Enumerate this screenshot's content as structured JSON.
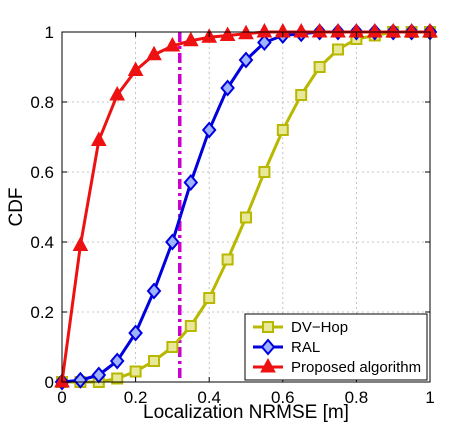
{
  "chart_data": {
    "type": "line",
    "title": "",
    "xlabel": "Localization NRMSE [m]",
    "ylabel": "CDF",
    "xlim": [
      0,
      1
    ],
    "ylim": [
      0,
      1
    ],
    "x_ticks": [
      "0",
      "0.2",
      "0.4",
      "0.6",
      "0.8",
      "1"
    ],
    "y_ticks": [
      "0",
      "0.2",
      "0.4",
      "0.6",
      "0.8",
      "1"
    ],
    "x_tick_values": [
      0,
      0.2,
      0.4,
      0.6,
      0.8,
      1
    ],
    "y_tick_values": [
      0,
      0.2,
      0.4,
      0.6,
      0.8,
      1
    ],
    "grid": true,
    "legend_position": "bottom-right",
    "threshold_line": {
      "x": 0.32,
      "color": "#cc00cc"
    },
    "series": [
      {
        "name": "DV−Hop",
        "color": "#b8b800",
        "marker": "square",
        "x": [
          0,
          0.05,
          0.1,
          0.15,
          0.2,
          0.25,
          0.3,
          0.35,
          0.4,
          0.45,
          0.5,
          0.55,
          0.6,
          0.65,
          0.7,
          0.75,
          0.8,
          0.85,
          0.9,
          0.95,
          1.0
        ],
        "values": [
          0,
          0,
          0,
          0.01,
          0.03,
          0.06,
          0.1,
          0.16,
          0.24,
          0.35,
          0.47,
          0.6,
          0.72,
          0.82,
          0.9,
          0.95,
          0.98,
          0.99,
          1.0,
          1.0,
          1.0
        ]
      },
      {
        "name": "RAL",
        "color": "#0000dd",
        "marker": "diamond",
        "x": [
          0,
          0.05,
          0.1,
          0.15,
          0.2,
          0.25,
          0.3,
          0.35,
          0.4,
          0.45,
          0.5,
          0.55,
          0.6,
          0.65,
          0.7,
          0.75,
          0.8,
          0.85,
          0.9,
          0.95,
          1.0
        ],
        "values": [
          0,
          0.005,
          0.02,
          0.06,
          0.14,
          0.26,
          0.4,
          0.57,
          0.72,
          0.84,
          0.92,
          0.97,
          0.99,
          0.995,
          1.0,
          1.0,
          1.0,
          1.0,
          1.0,
          1.0,
          1.0
        ]
      },
      {
        "name": "Proposed algorithm",
        "color": "#ee1111",
        "marker": "triangle",
        "x": [
          0,
          0.05,
          0.1,
          0.15,
          0.2,
          0.25,
          0.3,
          0.35,
          0.4,
          0.45,
          0.5,
          0.55,
          0.6,
          0.65,
          0.7,
          0.75,
          0.8,
          0.85,
          0.9,
          0.95,
          1.0
        ],
        "values": [
          0,
          0.39,
          0.69,
          0.82,
          0.89,
          0.935,
          0.96,
          0.975,
          0.985,
          0.99,
          0.995,
          1.0,
          1.0,
          1.0,
          1.0,
          1.0,
          1.0,
          1.0,
          1.0,
          1.0,
          1.0
        ]
      }
    ]
  }
}
